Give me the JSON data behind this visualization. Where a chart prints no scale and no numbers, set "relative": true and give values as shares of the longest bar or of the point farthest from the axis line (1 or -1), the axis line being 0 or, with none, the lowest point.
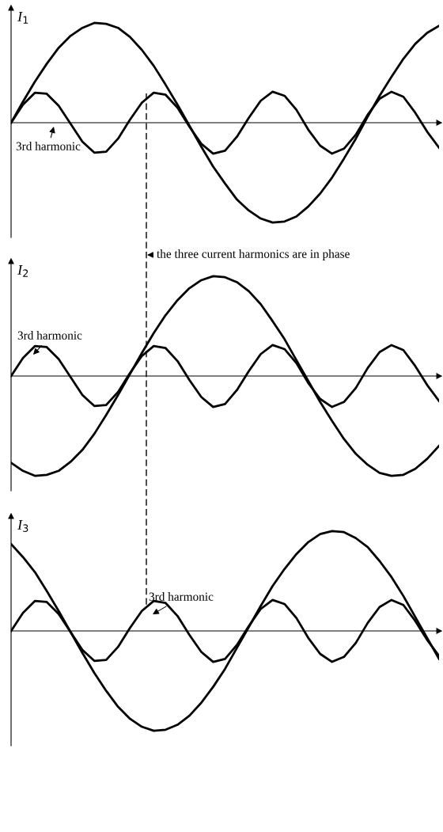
{
  "chart_data": [
    {
      "type": "line",
      "ylabel": "I$_{1}$",
      "relative": true,
      "legend": false,
      "marker": "none",
      "line_style": "solid",
      "categories": [
        null,
        null,
        null,
        null,
        null,
        null,
        null,
        null,
        null,
        null,
        null,
        null,
        null,
        null,
        null,
        null,
        null,
        null,
        null,
        null,
        null,
        null,
        null,
        null,
        null,
        null,
        null,
        null,
        null,
        null,
        null,
        null,
        null,
        null,
        null,
        null,
        null
      ],
      "series": [
        {
          "color": "#000000",
          "values": [
            0,
            0.21,
            0.41,
            0.59,
            0.75,
            0.87,
            0.95,
            1.0,
            0.99,
            0.95,
            0.86,
            0.73,
            0.57,
            0.38,
            0.18,
            -0.03,
            -0.24,
            -0.44,
            -0.61,
            -0.77,
            -0.88,
            -0.96,
            -1.0,
            -0.99,
            -0.94,
            -0.84,
            -0.71,
            -0.55,
            -0.36,
            -0.16,
            0.06,
            0.27,
            0.46,
            0.64,
            0.79,
            0.9,
            0.97
          ]
        },
        {
          "color": "#000000",
          "values": [
            0,
            0.18,
            0.3,
            0.29,
            0.17,
            -0.01,
            -0.19,
            -0.3,
            -0.29,
            -0.16,
            0.03,
            0.2,
            0.3,
            0.28,
            0.15,
            -0.04,
            -0.21,
            -0.31,
            -0.28,
            -0.14,
            0.05,
            0.22,
            0.31,
            0.27,
            0.13,
            -0.07,
            -0.23,
            -0.31,
            -0.26,
            -0.12,
            0.08,
            0.24,
            0.31,
            0.26,
            0.1,
            -0.09,
            -0.25
          ]
        }
      ],
      "annotations": [
        "3rd harmonic",
        "the three current harmonics are in phase"
      ]
    },
    {
      "type": "line",
      "ylabel": "I$_{2}$",
      "relative": true,
      "legend": false,
      "marker": "none",
      "line_style": "solid",
      "categories": [
        null,
        null,
        null,
        null,
        null,
        null,
        null,
        null,
        null,
        null,
        null,
        null,
        null,
        null,
        null,
        null,
        null,
        null,
        null,
        null,
        null,
        null,
        null,
        null,
        null,
        null,
        null,
        null,
        null,
        null,
        null,
        null,
        null,
        null,
        null,
        null,
        null
      ],
      "series": [
        {
          "color": "#000000",
          "values": [
            -0.87,
            -0.95,
            -1.0,
            -0.99,
            -0.95,
            -0.86,
            -0.74,
            -0.58,
            -0.39,
            -0.19,
            0.02,
            0.23,
            0.43,
            0.61,
            0.76,
            0.88,
            0.96,
            1.0,
            0.99,
            0.94,
            0.85,
            0.72,
            0.55,
            0.37,
            0.16,
            -0.05,
            -0.26,
            -0.45,
            -0.63,
            -0.78,
            -0.89,
            -0.97,
            -1.0,
            -0.99,
            -0.93,
            -0.83,
            -0.7
          ]
        },
        {
          "color": "#000000",
          "values": [
            0,
            0.18,
            0.3,
            0.29,
            0.17,
            -0.01,
            -0.19,
            -0.3,
            -0.29,
            -0.16,
            0.03,
            0.2,
            0.3,
            0.28,
            0.15,
            -0.04,
            -0.21,
            -0.31,
            -0.28,
            -0.14,
            0.05,
            0.22,
            0.31,
            0.27,
            0.13,
            -0.07,
            -0.23,
            -0.31,
            -0.26,
            -0.12,
            0.08,
            0.24,
            0.31,
            0.26,
            0.1,
            -0.09,
            -0.25
          ]
        }
      ],
      "annotations": [
        "3rd harmonic"
      ]
    },
    {
      "type": "line",
      "ylabel": "I$_{3}$",
      "relative": true,
      "legend": false,
      "marker": "none",
      "line_style": "solid",
      "categories": [
        null,
        null,
        null,
        null,
        null,
        null,
        null,
        null,
        null,
        null,
        null,
        null,
        null,
        null,
        null,
        null,
        null,
        null,
        null,
        null,
        null,
        null,
        null,
        null,
        null,
        null,
        null,
        null,
        null,
        null,
        null,
        null,
        null,
        null,
        null,
        null,
        null
      ],
      "series": [
        {
          "color": "#000000",
          "values": [
            0.87,
            0.74,
            0.59,
            0.4,
            0.2,
            -0.01,
            -0.22,
            -0.42,
            -0.6,
            -0.76,
            -0.88,
            -0.96,
            -1.0,
            -0.99,
            -0.94,
            -0.85,
            -0.72,
            -0.56,
            -0.38,
            -0.17,
            0.04,
            0.25,
            0.45,
            0.62,
            0.77,
            0.89,
            0.97,
            1.0,
            0.99,
            0.93,
            0.84,
            0.7,
            0.54,
            0.35,
            0.14,
            -0.07,
            -0.28
          ]
        },
        {
          "color": "#000000",
          "values": [
            0,
            0.18,
            0.3,
            0.29,
            0.17,
            -0.01,
            -0.19,
            -0.3,
            -0.29,
            -0.16,
            0.03,
            0.2,
            0.3,
            0.28,
            0.15,
            -0.04,
            -0.21,
            -0.31,
            -0.28,
            -0.14,
            0.05,
            0.22,
            0.31,
            0.27,
            0.13,
            -0.07,
            -0.23,
            -0.31,
            -0.26,
            -0.12,
            0.08,
            0.24,
            0.31,
            0.26,
            0.1,
            -0.09,
            -0.25
          ]
        }
      ],
      "annotations": [
        "3rd harmonic"
      ]
    }
  ]
}
